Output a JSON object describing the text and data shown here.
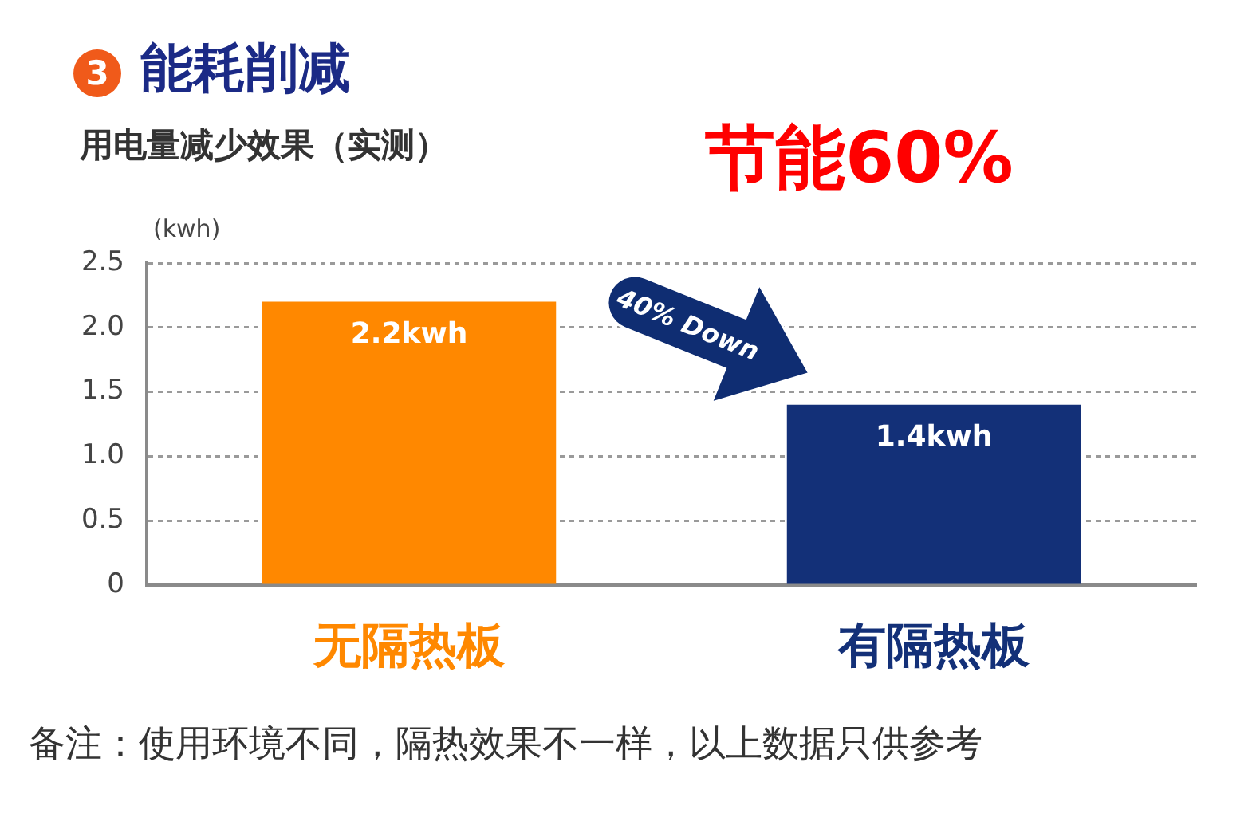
{
  "chart_data": {
    "type": "bar",
    "title": "能耗削减",
    "subtitle": "用电量减少效果（实测）",
    "ylabel": "(kwh)",
    "categories": [
      "无隔热板",
      "有隔热板"
    ],
    "values": [
      2.2,
      1.4
    ],
    "colors": [
      "#ff8800",
      "#133078"
    ],
    "value_labels": [
      "2.2kwh",
      "1.4kwh"
    ],
    "ylim": [
      0,
      2.5
    ],
    "yticks": [
      0,
      0.5,
      {
        "value": 1,
        "label": "1.0"
      },
      1.5,
      {
        "value": 2,
        "label": "2.0"
      },
      2.5
    ],
    "grid": "y",
    "annotations": [
      "3",
      "40% Down",
      "节能60%",
      "备注：使用环境不同，隔热效果不一样，以上数据只供参考"
    ]
  }
}
